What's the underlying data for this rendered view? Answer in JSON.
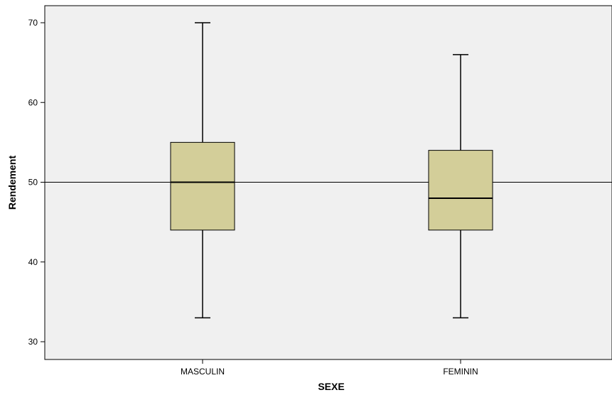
{
  "chart_data": {
    "type": "boxplot",
    "title": "",
    "xlabel": "SEXE",
    "ylabel": "Rendement",
    "ylim": [
      27,
      73
    ],
    "yticks": [
      30,
      40,
      50,
      60,
      70
    ],
    "reference_line": 50,
    "categories": [
      "MASCULIN",
      "FEMININ"
    ],
    "boxes": [
      {
        "category": "MASCULIN",
        "min": 33,
        "q1": 44,
        "median": 50,
        "q3": 55,
        "max": 70
      },
      {
        "category": "FEMININ",
        "min": 33,
        "q1": 44,
        "median": 48,
        "q3": 54,
        "max": 66
      }
    ],
    "colors": {
      "plot_background": "#f0f0f0",
      "box_fill": "#d3ce99",
      "stroke": "#000000"
    },
    "grid": false
  }
}
